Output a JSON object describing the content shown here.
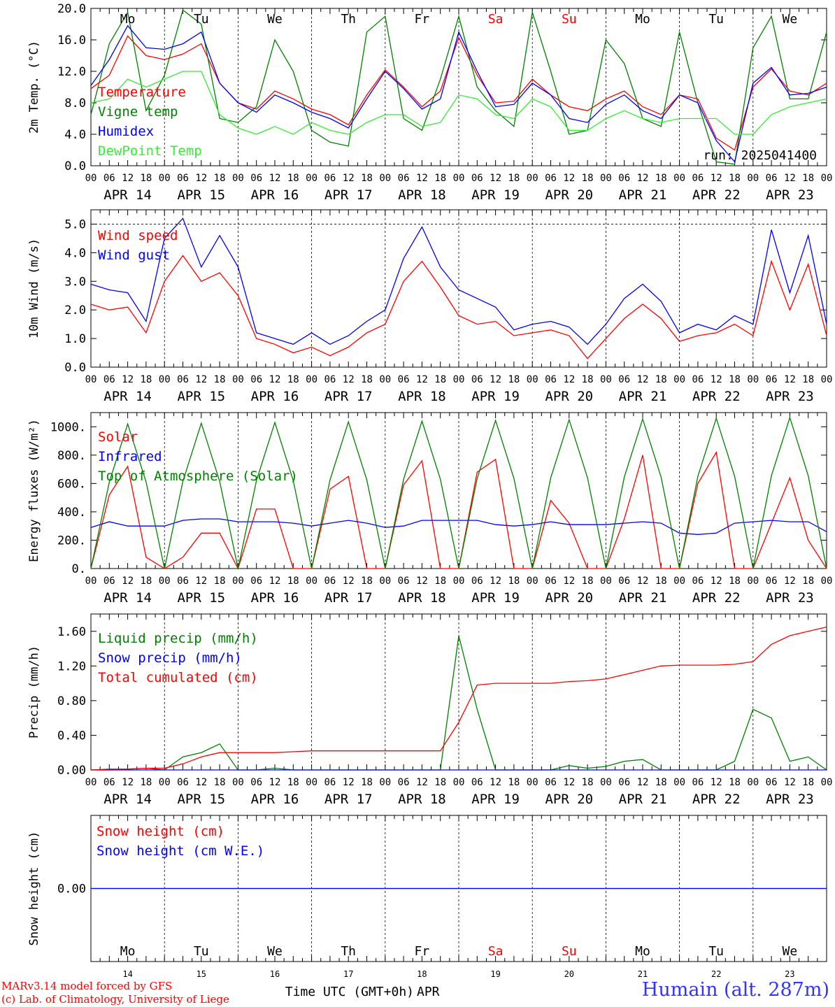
{
  "colors": {
    "red": "#ff0000",
    "green": "#008000",
    "blue": "#0000ff",
    "lime": "#33ee33",
    "weekend": "#ff0000"
  },
  "days": {
    "weekdays": [
      "Mo",
      "Tu",
      "We",
      "Th",
      "Fr",
      "Sa",
      "Su",
      "Mo",
      "Tu",
      "We"
    ],
    "dates": [
      "APR 14",
      "APR 15",
      "APR 16",
      "APR 17",
      "APR 18",
      "APR 19",
      "APR 20",
      "APR 21",
      "APR 22",
      "APR 23"
    ],
    "day_numbers": [
      "14",
      "15",
      "16",
      "17",
      "18",
      "19",
      "20",
      "21",
      "22",
      "23"
    ],
    "hour_labels": [
      "00",
      "06",
      "12",
      "18"
    ],
    "end_hour_label": "00"
  },
  "run_label": "run: 2025041400",
  "x_axis_title": "Time UTC (GMT+0h)",
  "x_axis_month": "APR",
  "credits": {
    "line1": "MARv3.14 model forced by GFS",
    "line2": "(c) Lab. of Climatology, University of Liege"
  },
  "station": "Humain (alt. 287m)",
  "chart_data": [
    {
      "type": "line",
      "ylabel": "2m Temp. (°C)",
      "ylim": [
        0,
        20
      ],
      "yticks": [
        "0.0",
        "4.0",
        "8.0",
        "12.0",
        "16.0",
        "20.0"
      ],
      "yticks_values": [
        0,
        4,
        8,
        12,
        16,
        20
      ],
      "x_hours": [
        0,
        6,
        12,
        18,
        24,
        30,
        36,
        42,
        48,
        54,
        60,
        66,
        72,
        78,
        84,
        90,
        96,
        102,
        108,
        114,
        120,
        126,
        132,
        138,
        144,
        150,
        156,
        162,
        168,
        174,
        180,
        186,
        192,
        198,
        204,
        210,
        216,
        222,
        228,
        234,
        240
      ],
      "series": [
        {
          "name": "Temperature",
          "color": "red",
          "values": [
            9.8,
            11.5,
            16.5,
            14.0,
            13.5,
            14.2,
            15.5,
            10.5,
            8.0,
            7.2,
            9.5,
            8.5,
            7.2,
            6.5,
            5.2,
            9.0,
            12.2,
            10.0,
            7.5,
            9.5,
            16.3,
            11.5,
            8.0,
            8.2,
            11.0,
            9.0,
            7.5,
            7.0,
            8.5,
            9.5,
            7.5,
            6.5,
            9.0,
            8.5,
            3.5,
            2.0,
            10.0,
            12.3,
            9.5,
            9.0,
            10.5
          ]
        },
        {
          "name": "Vigne temp",
          "color": "green",
          "values": [
            6.5,
            15.5,
            19.5,
            7.0,
            11.5,
            19.8,
            18.0,
            6.0,
            5.5,
            7.5,
            16.0,
            12.0,
            4.5,
            3.0,
            2.5,
            17.0,
            19.0,
            6.0,
            4.5,
            11.0,
            19.0,
            10.0,
            7.0,
            5.0,
            19.5,
            12.0,
            4.0,
            4.5,
            16.0,
            13.0,
            6.0,
            5.0,
            17.0,
            8.0,
            0.5,
            0.2,
            15.0,
            19.0,
            8.5,
            8.5,
            17.0
          ]
        },
        {
          "name": "Humidex",
          "color": "blue",
          "values": [
            10.2,
            13.5,
            17.8,
            15.0,
            14.8,
            15.5,
            17.0,
            10.5,
            8.0,
            6.8,
            9.0,
            8.0,
            6.8,
            6.0,
            4.8,
            8.5,
            12.0,
            9.8,
            7.2,
            8.5,
            17.0,
            12.0,
            7.5,
            7.8,
            10.5,
            9.0,
            6.0,
            5.5,
            7.8,
            9.0,
            7.0,
            6.0,
            9.0,
            8.0,
            3.2,
            0.5,
            10.5,
            12.5,
            9.0,
            9.2,
            10.0
          ]
        },
        {
          "name": "DewPoint Temp",
          "color": "lime",
          "values": [
            8.0,
            8.5,
            11.0,
            10.0,
            11.0,
            12.0,
            12.0,
            6.5,
            4.8,
            4.0,
            5.0,
            4.0,
            5.5,
            4.5,
            4.0,
            5.5,
            6.5,
            6.5,
            5.0,
            5.5,
            9.0,
            8.5,
            6.5,
            6.0,
            8.5,
            7.5,
            4.5,
            4.5,
            6.0,
            7.0,
            6.0,
            5.5,
            6.0,
            6.0,
            6.0,
            4.0,
            4.0,
            6.5,
            7.5,
            8.0,
            8.5
          ]
        }
      ]
    },
    {
      "type": "line",
      "ylabel": "10m Wind (m/s)",
      "ylim": [
        0,
        5.5
      ],
      "yticks": [
        "0.0",
        "1.0",
        "2.0",
        "3.0",
        "4.0",
        "5.0"
      ],
      "yticks_values": [
        0,
        1,
        2,
        3,
        4,
        5
      ],
      "dashed_y": 5.0,
      "x_hours": [
        0,
        6,
        12,
        18,
        24,
        30,
        36,
        42,
        48,
        54,
        60,
        66,
        72,
        78,
        84,
        90,
        96,
        102,
        108,
        114,
        120,
        126,
        132,
        138,
        144,
        150,
        156,
        162,
        168,
        174,
        180,
        186,
        192,
        198,
        204,
        210,
        216,
        222,
        228,
        234,
        240
      ],
      "series": [
        {
          "name": "Wind speed",
          "color": "red",
          "values": [
            2.2,
            2.0,
            2.1,
            1.2,
            3.0,
            3.9,
            3.0,
            3.3,
            2.5,
            1.0,
            0.8,
            0.5,
            0.7,
            0.4,
            0.7,
            1.2,
            1.5,
            3.0,
            3.7,
            2.8,
            1.8,
            1.5,
            1.6,
            1.1,
            1.2,
            1.3,
            1.1,
            0.3,
            1.0,
            1.7,
            2.2,
            1.7,
            0.9,
            1.1,
            1.2,
            1.5,
            1.1,
            3.7,
            2.0,
            3.6,
            1.1
          ]
        },
        {
          "name": "Wind gust",
          "color": "blue",
          "values": [
            2.9,
            2.7,
            2.6,
            1.6,
            4.5,
            5.2,
            3.5,
            4.6,
            3.5,
            1.2,
            1.0,
            0.8,
            1.2,
            0.8,
            1.1,
            1.6,
            2.0,
            3.8,
            4.9,
            3.5,
            2.7,
            2.4,
            2.1,
            1.3,
            1.5,
            1.6,
            1.4,
            0.8,
            1.5,
            2.4,
            2.9,
            2.3,
            1.2,
            1.5,
            1.3,
            1.8,
            1.5,
            4.8,
            2.6,
            4.6,
            1.5
          ]
        }
      ]
    },
    {
      "type": "line",
      "ylabel": "Energy fluxes (W/m²)",
      "ylim": [
        0,
        1100
      ],
      "yticks": [
        "0.",
        "200.",
        "400.",
        "600.",
        "800.",
        "1000."
      ],
      "yticks_values": [
        0,
        200,
        400,
        600,
        800,
        1000
      ],
      "x_hours": [
        0,
        6,
        12,
        18,
        24,
        30,
        36,
        42,
        48,
        54,
        60,
        66,
        72,
        78,
        84,
        90,
        96,
        102,
        108,
        114,
        120,
        126,
        132,
        138,
        144,
        150,
        156,
        162,
        168,
        174,
        180,
        186,
        192,
        198,
        204,
        210,
        216,
        222,
        228,
        234,
        240
      ],
      "series": [
        {
          "name": "Solar",
          "color": "red",
          "values": [
            0,
            520,
            720,
            80,
            0,
            80,
            250,
            250,
            0,
            420,
            420,
            0,
            0,
            560,
            650,
            0,
            0,
            590,
            760,
            0,
            0,
            680,
            770,
            0,
            0,
            480,
            320,
            0,
            0,
            350,
            800,
            0,
            0,
            600,
            820,
            0,
            0,
            320,
            640,
            200,
            0
          ]
        },
        {
          "name": "Infrared",
          "color": "blue",
          "values": [
            290,
            330,
            300,
            300,
            300,
            340,
            350,
            350,
            330,
            330,
            330,
            320,
            300,
            320,
            340,
            320,
            290,
            300,
            340,
            340,
            340,
            340,
            310,
            300,
            310,
            330,
            310,
            310,
            310,
            320,
            330,
            320,
            250,
            240,
            250,
            320,
            330,
            340,
            330,
            330,
            260
          ]
        },
        {
          "name": "Top of Atmosphere (Solar)",
          "color": "green",
          "values": [
            0,
            610,
            1020,
            610,
            0,
            615,
            1025,
            615,
            0,
            620,
            1030,
            620,
            0,
            625,
            1035,
            625,
            0,
            630,
            1040,
            630,
            0,
            635,
            1045,
            635,
            0,
            640,
            1050,
            640,
            0,
            645,
            1055,
            645,
            0,
            650,
            1060,
            650,
            0,
            655,
            1065,
            655,
            0
          ]
        }
      ]
    },
    {
      "type": "line",
      "ylabel": "Precip (mm/h)",
      "ylim": [
        0,
        1.8
      ],
      "yticks": [
        "0.00",
        "0.40",
        "0.80",
        "1.20",
        "1.60"
      ],
      "yticks_values": [
        0,
        0.4,
        0.8,
        1.2,
        1.6
      ],
      "x_hours": [
        0,
        6,
        12,
        18,
        24,
        30,
        36,
        42,
        48,
        54,
        60,
        66,
        72,
        78,
        84,
        90,
        96,
        102,
        108,
        114,
        120,
        126,
        132,
        138,
        144,
        150,
        156,
        162,
        168,
        174,
        180,
        186,
        192,
        198,
        204,
        210,
        216,
        222,
        228,
        234,
        240
      ],
      "series": [
        {
          "name": "Liquid precip (mm/h)",
          "color": "green",
          "values": [
            0,
            0,
            0.01,
            0.02,
            0,
            0.15,
            0.2,
            0.3,
            0,
            0,
            0.02,
            0,
            0,
            0,
            0,
            0,
            0,
            0,
            0,
            0,
            1.55,
            0.7,
            0,
            0,
            0,
            0,
            0.05,
            0.02,
            0.04,
            0.1,
            0.12,
            0,
            0,
            0,
            0,
            0.1,
            0.7,
            0.6,
            0.1,
            0.15,
            0
          ]
        },
        {
          "name": "Snow precip (mm/h)",
          "color": "blue",
          "values": [
            0,
            0,
            0,
            0,
            0,
            0,
            0,
            0,
            0,
            0,
            0,
            0,
            0,
            0,
            0,
            0,
            0,
            0,
            0,
            0,
            0,
            0,
            0,
            0,
            0,
            0,
            0,
            0,
            0,
            0,
            0,
            0,
            0,
            0,
            0,
            0,
            0,
            0,
            0,
            0,
            0
          ]
        },
        {
          "name": "Total cumulated (cm)",
          "color": "red",
          "values": [
            0,
            0.01,
            0.01,
            0.02,
            0.02,
            0.07,
            0.15,
            0.2,
            0.2,
            0.2,
            0.2,
            0.21,
            0.22,
            0.22,
            0.22,
            0.22,
            0.22,
            0.22,
            0.22,
            0.22,
            0.55,
            0.98,
            1.0,
            1.0,
            1.0,
            1.0,
            1.02,
            1.03,
            1.05,
            1.1,
            1.15,
            1.2,
            1.21,
            1.21,
            1.21,
            1.22,
            1.25,
            1.45,
            1.55,
            1.6,
            1.65
          ]
        }
      ]
    },
    {
      "type": "line",
      "ylabel": "Snow height (cm)",
      "ylim": [
        -1,
        1
      ],
      "yticks": [
        "0.00"
      ],
      "yticks_values": [
        0
      ],
      "x_hours": [
        0,
        240
      ],
      "series": [
        {
          "name": "Snow height (cm)",
          "color": "red",
          "values": [
            0,
            0
          ]
        },
        {
          "name": "Snow height (cm W.E.)",
          "color": "blue",
          "values": [
            0,
            0
          ]
        }
      ]
    }
  ]
}
